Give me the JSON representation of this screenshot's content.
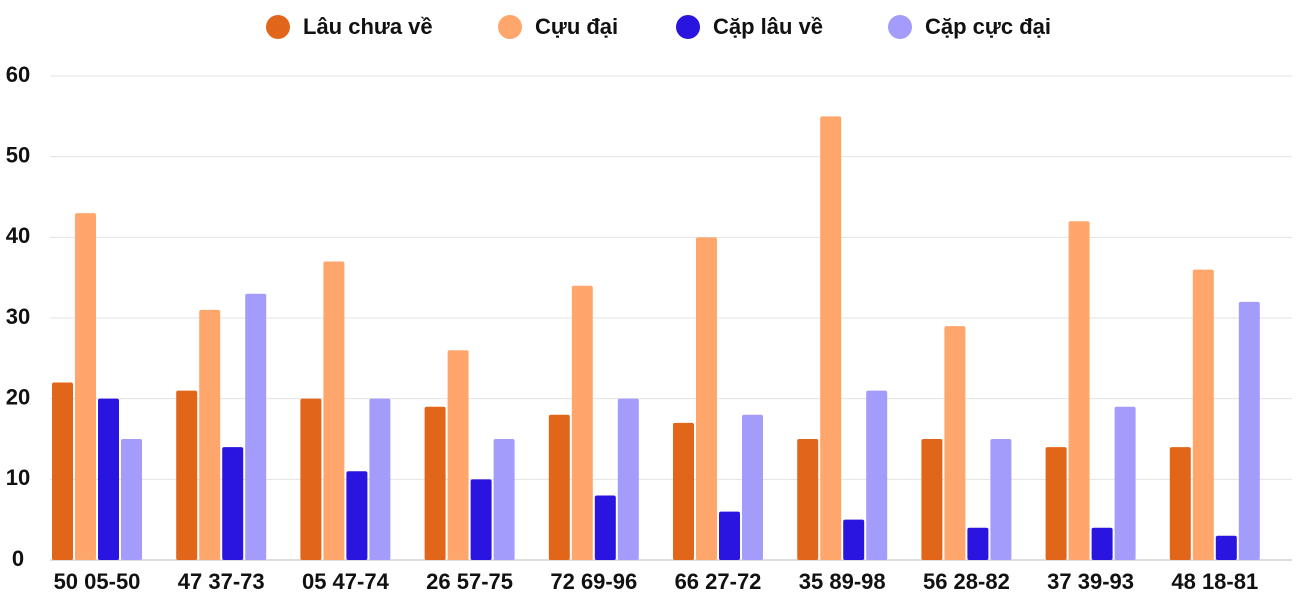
{
  "chart_data": {
    "type": "bar",
    "categories": [
      "50 05-50",
      "47 37-73",
      "05 47-74",
      "26 57-75",
      "72 69-96",
      "66 27-72",
      "35 89-98",
      "56 28-82",
      "37 39-93",
      "48 18-81"
    ],
    "series": [
      {
        "name": "Lâu chưa về",
        "color": "#e2661a",
        "values": [
          22,
          21,
          20,
          19,
          18,
          17,
          15,
          15,
          14,
          14
        ]
      },
      {
        "name": "Cựu đại",
        "color": "#ffa66c",
        "values": [
          43,
          31,
          37,
          26,
          34,
          40,
          55,
          29,
          42,
          36
        ]
      },
      {
        "name": "Cặp lâu về",
        "color": "#2a14e0",
        "values": [
          20,
          14,
          11,
          10,
          8,
          6,
          5,
          4,
          4,
          3
        ]
      },
      {
        "name": "Cặp cực đại",
        "color": "#a39cfb",
        "values": [
          15,
          33,
          20,
          15,
          20,
          18,
          21,
          15,
          19,
          32
        ]
      }
    ],
    "ylim": [
      0,
      60
    ],
    "yticks": [
      0,
      10,
      20,
      30,
      40,
      50,
      60
    ],
    "grid": true,
    "legend": "top"
  }
}
